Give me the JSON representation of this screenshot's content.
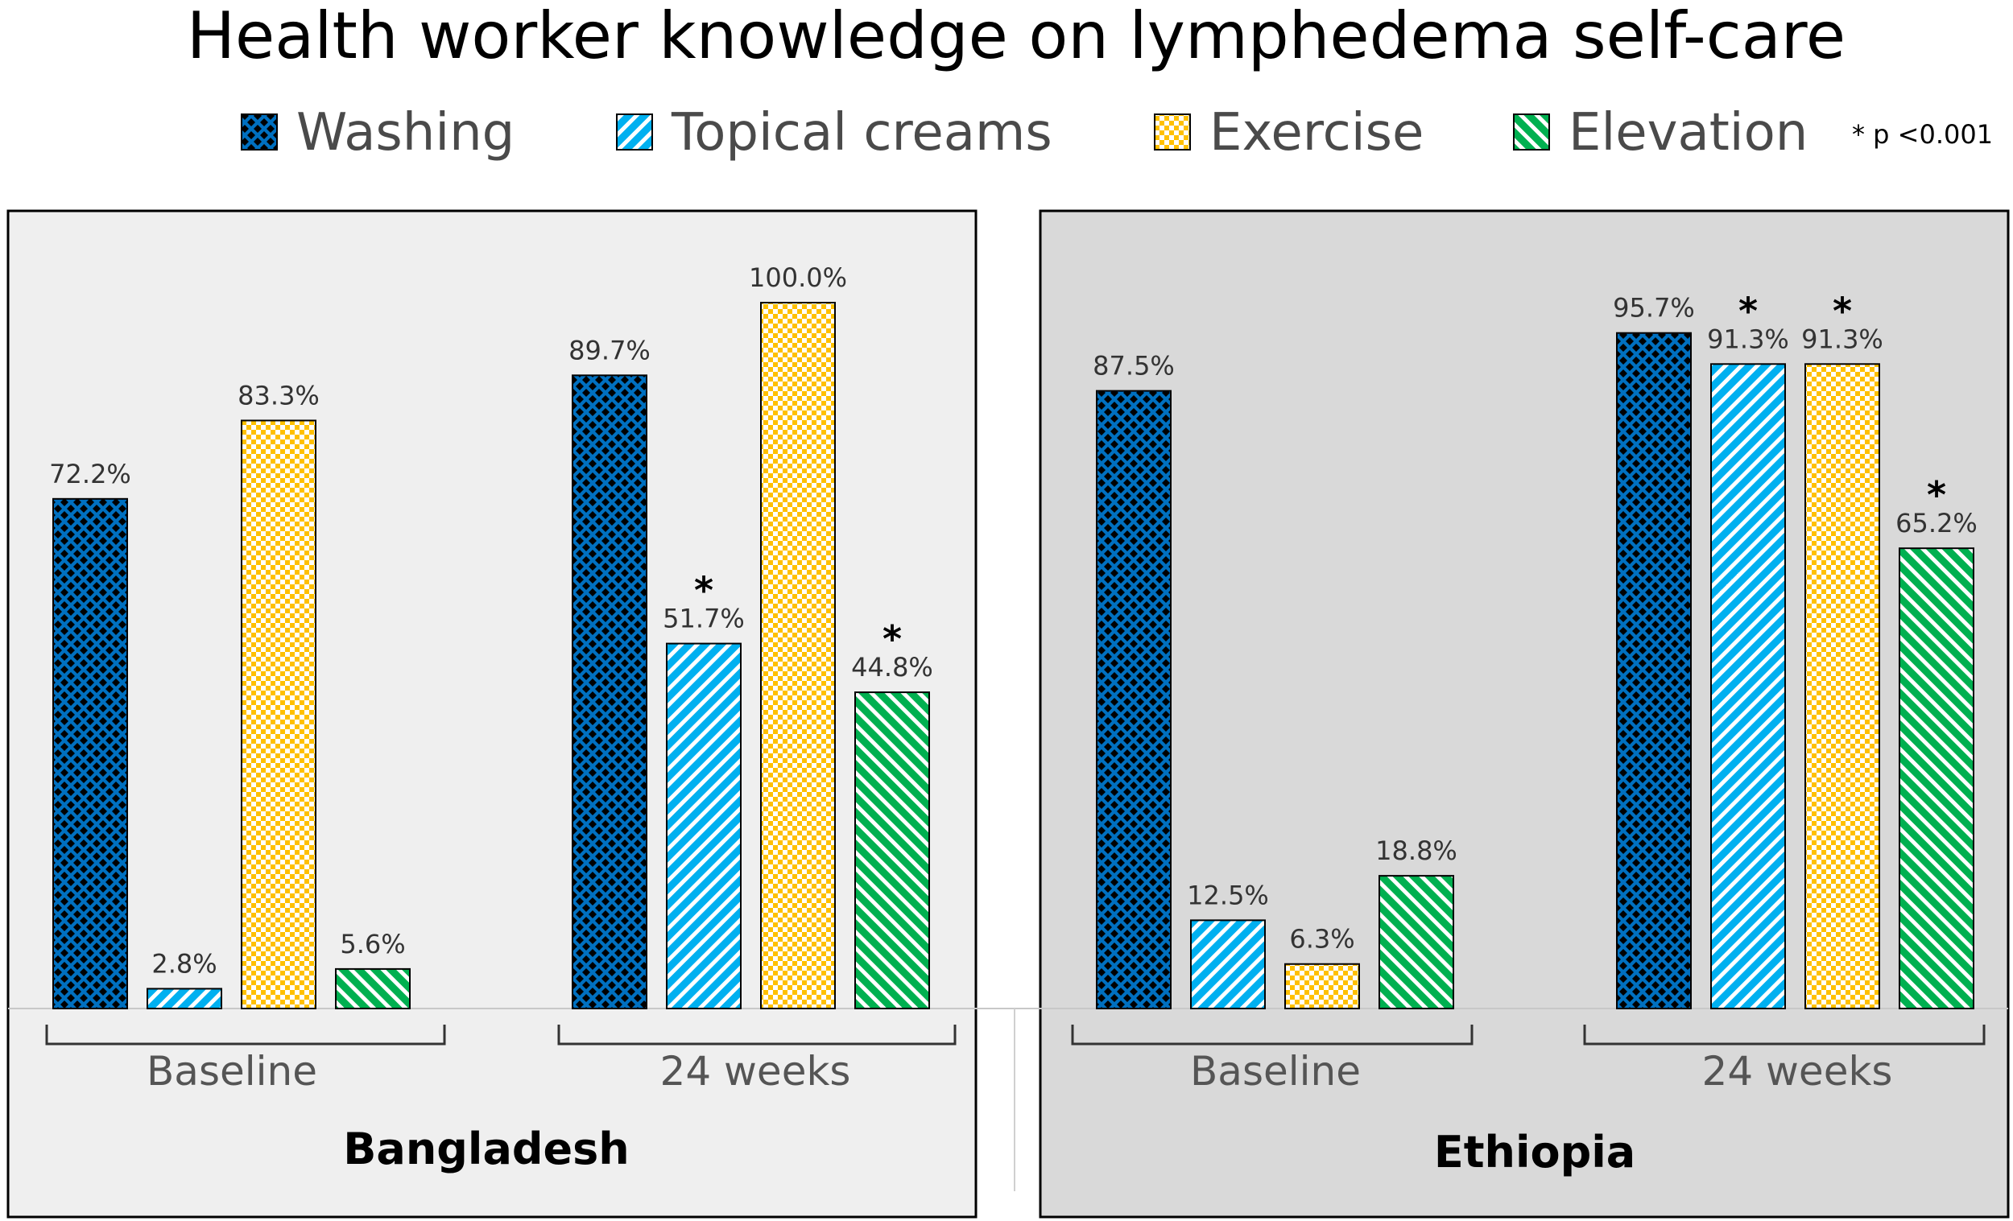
{
  "chart_data": {
    "type": "bar",
    "title": "Health worker knowledge on lymphedema self-care",
    "significance_note": "* p <0.001",
    "legend": {
      "placement": "top",
      "entries": [
        "Washing",
        "Topical creams",
        "Exercise",
        "Elevation"
      ]
    },
    "colors": {
      "Washing": "#0070c0",
      "Topical creams": "#00b0f0",
      "Exercise": "#ffc000",
      "Elevation": "#00b050",
      "panel_bangladesh": "#efefef",
      "panel_ethiopia": "#d9d9d9"
    },
    "ylim": [
      0,
      100
    ],
    "grid": false,
    "panels": [
      {
        "country": "Bangladesh",
        "groups": [
          {
            "label": "Baseline",
            "values": [
              72.2,
              2.8,
              83.3,
              5.6
            ],
            "labels": [
              "72.2%",
              "2.8%",
              "83.3%",
              "5.6%"
            ],
            "significant": [
              false,
              false,
              false,
              false
            ]
          },
          {
            "label": "24 weeks",
            "values": [
              89.7,
              51.7,
              100.0,
              44.8
            ],
            "labels": [
              "89.7%",
              "51.7%",
              "100.0%",
              "44.8%"
            ],
            "significant": [
              false,
              true,
              false,
              true
            ]
          }
        ]
      },
      {
        "country": "Ethiopia",
        "groups": [
          {
            "label": "Baseline",
            "values": [
              87.5,
              12.5,
              6.3,
              18.8
            ],
            "labels": [
              "87.5%",
              "12.5%",
              "6.3%",
              "18.8%"
            ],
            "significant": [
              false,
              false,
              false,
              false
            ]
          },
          {
            "label": "24 weeks",
            "values": [
              95.7,
              91.3,
              91.3,
              65.2
            ],
            "labels": [
              "95.7%",
              "91.3%",
              "91.3%",
              "65.2%"
            ],
            "significant": [
              false,
              true,
              true,
              true
            ]
          }
        ]
      }
    ]
  }
}
